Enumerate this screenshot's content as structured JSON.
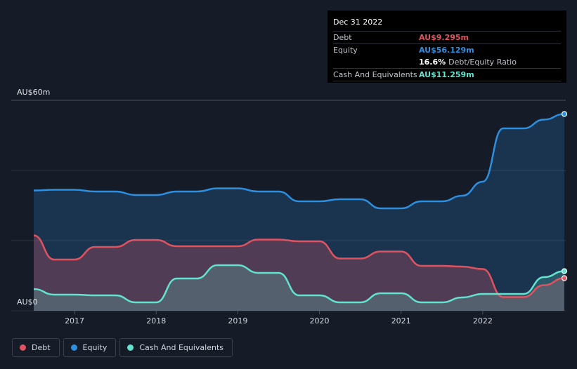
{
  "tooltip": {
    "date": "Dec 31 2022",
    "debt_label": "Debt",
    "debt_value": "AU$9.295m",
    "equity_label": "Equity",
    "equity_value": "AU$56.129m",
    "ratio_value": "16.6%",
    "ratio_label": "Debt/Equity Ratio",
    "cash_label": "Cash And Equivalents",
    "cash_value": "AU$11.259m"
  },
  "legend": {
    "debt": "Debt",
    "equity": "Equity",
    "cash": "Cash And Equivalents"
  },
  "colors": {
    "debt": "#e05260",
    "equity": "#2d8fe0",
    "cash": "#62e3cf",
    "background": "#151b27"
  },
  "chart_data": {
    "type": "area",
    "ylim": [
      0,
      60
    ],
    "y_top_label": "AU$60m",
    "y_bottom_label": "AU$0",
    "xlim": [
      2016.5,
      2023.0
    ],
    "x_ticks": [
      2017,
      2018,
      2019,
      2020,
      2021,
      2022
    ],
    "x_tick_labels": [
      "2017",
      "2018",
      "2019",
      "2020",
      "2021",
      "2022"
    ],
    "grid": true,
    "series": [
      {
        "name": "Equity",
        "x": [
          2016.5,
          2016.75,
          2017.0,
          2017.25,
          2017.5,
          2017.75,
          2018.0,
          2018.25,
          2018.5,
          2018.75,
          2019.0,
          2019.25,
          2019.5,
          2019.75,
          2020.0,
          2020.25,
          2020.5,
          2020.75,
          2021.0,
          2021.25,
          2021.5,
          2021.75,
          2022.0,
          2022.25,
          2022.5,
          2022.75,
          2023.0
        ],
        "values": [
          34.3,
          34.5,
          34.5,
          34.0,
          34.0,
          33.0,
          33.0,
          34.0,
          34.0,
          34.9,
          34.9,
          34.0,
          34.0,
          31.2,
          31.2,
          31.8,
          31.8,
          29.2,
          29.2,
          31.2,
          31.2,
          32.8,
          36.8,
          52.0,
          52.0,
          54.5,
          56.1
        ]
      },
      {
        "name": "Debt",
        "x": [
          2016.5,
          2016.75,
          2017.0,
          2017.25,
          2017.5,
          2017.75,
          2018.0,
          2018.25,
          2018.5,
          2018.75,
          2019.0,
          2019.25,
          2019.5,
          2019.75,
          2020.0,
          2020.25,
          2020.5,
          2020.75,
          2021.0,
          2021.25,
          2021.5,
          2021.75,
          2022.0,
          2022.25,
          2022.5,
          2022.75,
          2023.0
        ],
        "values": [
          21.5,
          14.6,
          14.6,
          18.2,
          18.2,
          20.2,
          20.2,
          18.4,
          18.4,
          18.4,
          18.4,
          20.3,
          20.3,
          19.8,
          19.8,
          14.9,
          14.9,
          16.9,
          16.9,
          12.8,
          12.8,
          12.6,
          11.9,
          3.9,
          3.9,
          7.3,
          9.3
        ]
      },
      {
        "name": "Cash And Equivalents",
        "x": [
          2016.5,
          2016.75,
          2017.0,
          2017.25,
          2017.5,
          2017.75,
          2018.0,
          2018.25,
          2018.5,
          2018.75,
          2019.0,
          2019.25,
          2019.5,
          2019.75,
          2020.0,
          2020.25,
          2020.5,
          2020.75,
          2021.0,
          2021.25,
          2021.5,
          2021.75,
          2022.0,
          2022.25,
          2022.5,
          2022.75,
          2023.0
        ],
        "values": [
          6.2,
          4.6,
          4.6,
          4.4,
          4.4,
          2.4,
          2.4,
          9.2,
          9.2,
          13.0,
          13.0,
          10.8,
          10.8,
          4.4,
          4.4,
          2.4,
          2.4,
          5.0,
          5.0,
          2.4,
          2.4,
          3.8,
          4.8,
          4.8,
          4.8,
          9.6,
          11.3
        ]
      }
    ]
  }
}
